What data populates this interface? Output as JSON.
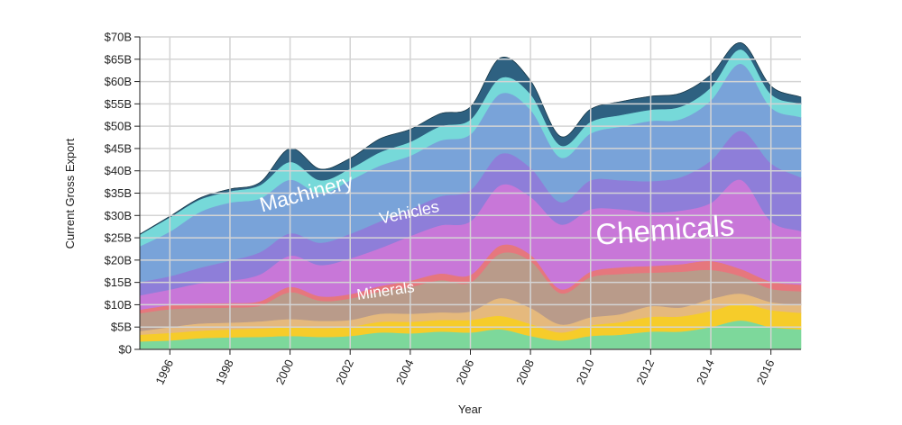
{
  "chart_data": {
    "type": "area",
    "stacked": true,
    "xlabel": "Year",
    "ylabel": "Current Gross Export",
    "xlim": [
      1995,
      2017
    ],
    "ylim": [
      0,
      70
    ],
    "x_ticks": [
      1996,
      1998,
      2000,
      2002,
      2004,
      2006,
      2008,
      2010,
      2012,
      2014,
      2016
    ],
    "y_ticks": [
      {
        "value": 0,
        "label": "$0"
      },
      {
        "value": 5,
        "label": "$5B"
      },
      {
        "value": 10,
        "label": "$10B"
      },
      {
        "value": 15,
        "label": "$15B"
      },
      {
        "value": 20,
        "label": "$20B"
      },
      {
        "value": 25,
        "label": "$25B"
      },
      {
        "value": 30,
        "label": "$30B"
      },
      {
        "value": 35,
        "label": "$35B"
      },
      {
        "value": 40,
        "label": "$40B"
      },
      {
        "value": 45,
        "label": "$45B"
      },
      {
        "value": 50,
        "label": "$50B"
      },
      {
        "value": 55,
        "label": "$55B"
      },
      {
        "value": 60,
        "label": "$60B"
      },
      {
        "value": 65,
        "label": "$65B"
      },
      {
        "value": 70,
        "label": "$70B"
      }
    ],
    "grid": true,
    "x": [
      1995,
      1996,
      1997,
      1998,
      1999,
      2000,
      2001,
      2002,
      2003,
      2004,
      2005,
      2006,
      2007,
      2008,
      2009,
      2010,
      2011,
      2012,
      2013,
      2014,
      2015,
      2016,
      2017
    ],
    "series": [
      {
        "color": "#7dd89b",
        "values": [
          1.8,
          2.0,
          2.5,
          2.7,
          2.8,
          3.0,
          2.8,
          3.0,
          3.8,
          3.6,
          4.0,
          3.8,
          4.5,
          3.0,
          2.0,
          3.0,
          3.3,
          4.0,
          4.0,
          5.0,
          6.5,
          5.0,
          4.5
        ]
      },
      {
        "color": "#f6cc2a",
        "values": [
          1.5,
          1.7,
          1.7,
          1.8,
          1.9,
          2.0,
          2.0,
          2.1,
          2.4,
          2.6,
          2.6,
          2.8,
          3.0,
          2.7,
          1.8,
          2.4,
          2.8,
          3.3,
          3.4,
          3.6,
          3.8,
          3.8,
          3.7
        ]
      },
      {
        "color": "#e5b97d",
        "values": [
          0.8,
          1.3,
          1.6,
          1.5,
          1.6,
          1.8,
          1.6,
          1.5,
          1.8,
          1.8,
          1.7,
          1.9,
          4.0,
          3.6,
          1.8,
          1.8,
          1.8,
          2.4,
          2.0,
          2.7,
          2.2,
          1.8,
          1.8
        ]
      },
      {
        "color": "#b99b8a",
        "values": [
          4.0,
          4.0,
          3.5,
          3.4,
          3.5,
          6.0,
          4.5,
          4.8,
          5.0,
          6.0,
          7.2,
          6.5,
          10.0,
          10.5,
          7.0,
          9.0,
          9.0,
          7.5,
          8.0,
          6.5,
          3.9,
          3.0,
          3.0
        ]
      },
      {
        "color": "#e6777d",
        "values": [
          0.8,
          0.9,
          1.0,
          1.0,
          1.0,
          1.2,
          1.0,
          1.0,
          1.2,
          1.4,
          1.5,
          1.7,
          1.8,
          1.4,
          0.9,
          1.2,
          1.5,
          1.5,
          1.7,
          2.0,
          1.6,
          1.6,
          1.5
        ]
      },
      {
        "color": "#c877d8",
        "values": [
          3.2,
          3.5,
          4.5,
          5.0,
          6.0,
          7.0,
          7.0,
          8.0,
          8.5,
          10.0,
          10.8,
          12.0,
          13.5,
          13.0,
          14.5,
          14.0,
          13.0,
          12.0,
          12.0,
          13.0,
          20.0,
          13.5,
          12.0
        ]
      },
      {
        "color": "#8e7ed9",
        "values": [
          3.0,
          3.0,
          3.5,
          4.5,
          5.0,
          5.0,
          5.0,
          5.5,
          6.0,
          6.0,
          6.5,
          7.0,
          7.0,
          6.5,
          5.0,
          6.5,
          6.5,
          7.0,
          7.5,
          9.5,
          11.0,
          13.0,
          12.0
        ]
      },
      {
        "color": "#79a3d9",
        "values": [
          8.0,
          10.0,
          12.5,
          13.0,
          12.0,
          12.0,
          11.0,
          12.0,
          12.5,
          12.0,
          12.5,
          12.5,
          13.5,
          13.0,
          10.0,
          10.5,
          12.0,
          13.5,
          13.0,
          13.5,
          15.0,
          12.5,
          13.5
        ]
      },
      {
        "color": "#76d9d9",
        "values": [
          2.6,
          3.2,
          2.8,
          2.5,
          3.0,
          4.0,
          3.0,
          2.6,
          3.0,
          3.1,
          3.2,
          3.3,
          3.5,
          3.5,
          2.7,
          2.6,
          2.6,
          2.5,
          2.8,
          2.9,
          3.2,
          3.0,
          3.0
        ]
      },
      {
        "color": "#2e6181",
        "values": [
          0.1,
          0.2,
          0.3,
          0.5,
          0.6,
          3.0,
          2.5,
          2.3,
          3.0,
          2.8,
          2.8,
          2.8,
          4.5,
          3.0,
          2.0,
          2.8,
          3.0,
          3.0,
          3.0,
          2.8,
          1.5,
          1.8,
          1.5
        ]
      }
    ],
    "annotations": [
      {
        "text": "Machinery",
        "x": 2000.6,
        "y": 33.5,
        "size": 23,
        "rotate": -15
      },
      {
        "text": "Vehicles",
        "x": 2004.0,
        "y": 29.5,
        "size": 18,
        "rotate": -12
      },
      {
        "text": "Chemicals",
        "x": 2012.5,
        "y": 24.5,
        "size": 33,
        "rotate": -4
      },
      {
        "text": "Minerals",
        "x": 2003.2,
        "y": 12.0,
        "size": 17,
        "rotate": -8
      }
    ]
  }
}
